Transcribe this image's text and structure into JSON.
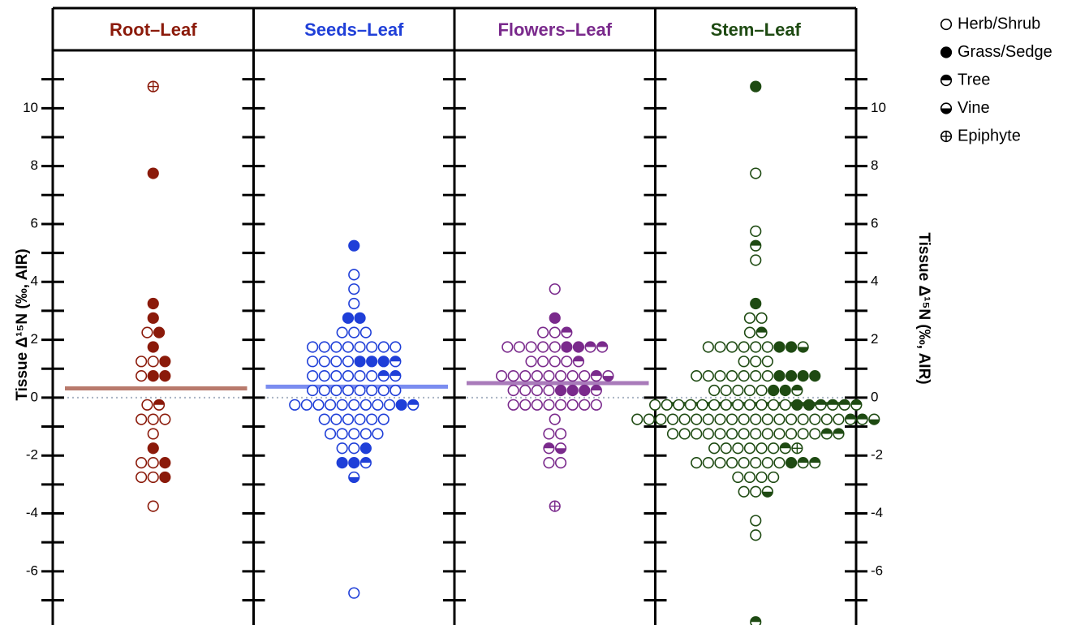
{
  "chart_data": {
    "type": "beeswarm",
    "ylabel": "Tissue Δ¹⁵N (‰, AIR)",
    "ylim": [
      -7.8,
      12
    ],
    "yticks": [
      -6,
      -4,
      -2,
      0,
      2,
      4,
      6,
      8,
      10
    ],
    "yminor": [
      -7,
      -5,
      -3,
      -1,
      1,
      3,
      5,
      7,
      9,
      11
    ],
    "legend": [
      "Herb/Shrub",
      "Grass/Sedge",
      "Tree",
      "Vine",
      "Epiphyte"
    ],
    "panels": [
      {
        "title": "Root–Leaf",
        "color": "#8b1a0a",
        "mean_color": "#b87a6c",
        "mean": 0.32,
        "values": [
          [
            2.25,
            1.25,
            1.25,
            0.75,
            -0.25,
            -0.75,
            -0.75,
            -0.75,
            -1.25,
            -2.25,
            -2.25,
            -2.75,
            -2.75,
            -3.75
          ],
          [
            7.75,
            3.25,
            2.75,
            2.25,
            1.75,
            1.25,
            0.75,
            0.75,
            -1.75,
            -2.25,
            -2.75
          ],
          [
            -0.25
          ],
          [],
          [
            10.75
          ]
        ]
      },
      {
        "title": "Seeds–Leaf",
        "color": "#1f3fd8",
        "mean_color": "#7b8df0",
        "mean": 0.38,
        "values": [
          [
            4.25,
            3.75,
            3.25,
            2.25,
            2.25,
            2.25,
            1.75,
            1.75,
            1.75,
            1.75,
            1.75,
            1.75,
            1.75,
            1.75,
            1.25,
            1.25,
            1.25,
            1.25,
            0.75,
            0.75,
            0.75,
            0.75,
            0.75,
            0.75,
            0.25,
            0.25,
            0.25,
            0.25,
            0.25,
            0.25,
            0.25,
            0.25,
            -0.25,
            -0.25,
            -0.25,
            -0.25,
            -0.25,
            -0.25,
            -0.25,
            -0.25,
            -0.25,
            -0.75,
            -0.75,
            -0.75,
            -0.75,
            -0.75,
            -0.75,
            -1.25,
            -1.25,
            -1.25,
            -1.25,
            -1.25,
            -1.75,
            -1.75,
            -6.75
          ],
          [
            5.25,
            2.75,
            2.75,
            1.25,
            1.25,
            1.25,
            -0.25,
            -1.75,
            -2.25,
            -2.25
          ],
          [
            1.25,
            0.75,
            0.75,
            -0.25,
            -2.25
          ],
          [
            -2.75
          ],
          []
        ]
      },
      {
        "title": "Flowers–Leaf",
        "color": "#7a2a8c",
        "mean_color": "#a97bba",
        "mean": 0.5,
        "values": [
          [
            3.75,
            2.25,
            2.25,
            1.75,
            1.75,
            1.75,
            1.75,
            1.75,
            1.25,
            1.25,
            1.25,
            1.25,
            0.75,
            0.75,
            0.75,
            0.75,
            0.75,
            0.75,
            0.75,
            0.75,
            0.25,
            0.25,
            0.25,
            0.25,
            -0.25,
            -0.25,
            -0.25,
            -0.25,
            -0.25,
            -0.25,
            -0.25,
            -0.25,
            -0.75,
            -1.25,
            -1.25,
            -2.25,
            -2.25
          ],
          [
            2.75,
            1.75,
            1.75,
            0.25,
            0.25,
            0.25
          ],
          [
            2.25,
            1.75,
            1.75,
            1.25,
            0.75,
            0.25,
            -1.75
          ],
          [
            0.75,
            -1.75
          ],
          [
            -3.75
          ]
        ]
      },
      {
        "title": "Stem–Leaf",
        "color": "#1e4a12",
        "mean_color": "#2f5a22",
        "mean": -0.22,
        "values": [
          [
            7.75,
            5.75,
            4.75,
            2.75,
            2.75,
            2.25,
            1.75,
            1.75,
            1.75,
            1.75,
            1.75,
            1.75,
            1.25,
            1.25,
            1.25,
            0.75,
            0.75,
            0.75,
            0.75,
            0.75,
            0.75,
            0.75,
            0.25,
            0.25,
            0.25,
            0.25,
            0.25,
            -0.25,
            -0.25,
            -0.25,
            -0.25,
            -0.25,
            -0.25,
            -0.25,
            -0.25,
            -0.25,
            -0.25,
            -0.25,
            -0.25,
            -0.75,
            -0.75,
            -0.75,
            -0.75,
            -0.75,
            -0.75,
            -0.75,
            -0.75,
            -0.75,
            -0.75,
            -0.75,
            -0.75,
            -0.75,
            -0.75,
            -0.75,
            -0.75,
            -0.75,
            -0.75,
            -1.25,
            -1.25,
            -1.25,
            -1.25,
            -1.25,
            -1.25,
            -1.25,
            -1.25,
            -1.25,
            -1.25,
            -1.25,
            -1.25,
            -1.25,
            -1.75,
            -1.75,
            -1.75,
            -1.75,
            -1.75,
            -1.75,
            -2.25,
            -2.25,
            -2.25,
            -2.25,
            -2.25,
            -2.25,
            -2.25,
            -2.25,
            -2.75,
            -2.75,
            -2.75,
            -2.75,
            -3.25,
            -3.25,
            -4.25,
            -4.75
          ],
          [
            10.75,
            3.25,
            1.75,
            1.75,
            0.75,
            0.75,
            0.75,
            0.75,
            0.25,
            0.25,
            -0.25,
            -0.25,
            -2.25
          ],
          [
            5.25,
            2.25,
            0.25,
            -0.25,
            -0.25,
            -0.25,
            -0.25,
            -0.75,
            -0.75,
            -1.25,
            -1.25,
            -1.75,
            -2.25,
            -2.25,
            -7.75
          ],
          [
            1.75,
            -0.75,
            -3.25
          ],
          [
            -1.75
          ]
        ]
      }
    ]
  }
}
